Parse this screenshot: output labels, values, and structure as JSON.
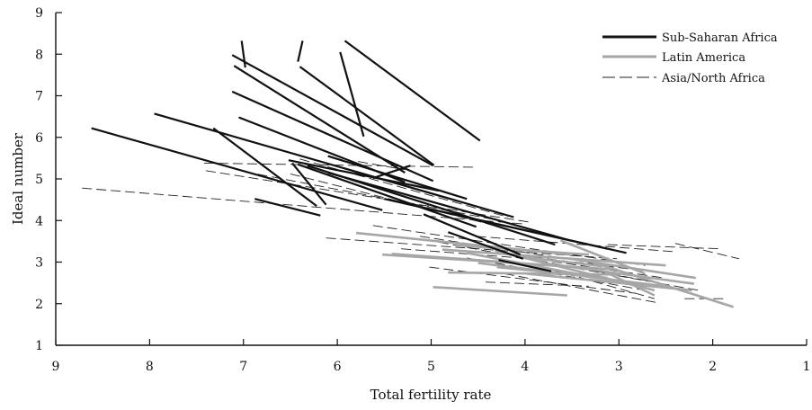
{
  "chart_data": {
    "type": "line",
    "title": "",
    "xlabel": "Total fertility rate",
    "ylabel": "Ideal number",
    "x_reversed": true,
    "xlim": [
      9,
      1
    ],
    "ylim": [
      1,
      9
    ],
    "x_ticks": [
      9,
      8,
      7,
      6,
      5,
      4,
      3,
      2,
      1
    ],
    "y_ticks": [
      1,
      2,
      3,
      4,
      5,
      6,
      7,
      8,
      9
    ],
    "grid": false,
    "legend_position": "top-right",
    "legend": [
      {
        "label": "Sub-Saharan Africa",
        "style": "solid-black"
      },
      {
        "label": "Latin America",
        "style": "solid-gray"
      },
      {
        "label": "Asia/North Africa",
        "style": "dashed-black"
      }
    ],
    "colors": {
      "sub_saharan": "#111111",
      "latin_america": "#a6a6a6",
      "asia": "#222222"
    },
    "series": [
      {
        "name": "Sub-Saharan Africa",
        "segments": [
          [
            [
              7.02,
              8.32
            ],
            [
              6.98,
              7.68
            ]
          ],
          [
            [
              6.37,
              8.32
            ],
            [
              6.42,
              7.82
            ]
          ],
          [
            [
              5.92,
              8.32
            ],
            [
              4.48,
              5.92
            ]
          ],
          [
            [
              7.12,
              7.98
            ],
            [
              4.98,
              5.32
            ]
          ],
          [
            [
              7.1,
              7.72
            ],
            [
              5.28,
              5.15
            ]
          ],
          [
            [
              6.4,
              7.7
            ],
            [
              4.97,
              5.33
            ]
          ],
          [
            [
              5.97,
              8.05
            ],
            [
              5.72,
              6.02
            ]
          ],
          [
            [
              7.12,
              7.1
            ],
            [
              4.98,
              4.95
            ]
          ],
          [
            [
              8.62,
              6.22
            ],
            [
              5.52,
              4.25
            ]
          ],
          [
            [
              7.05,
              6.48
            ],
            [
              5.28,
              4.92
            ]
          ],
          [
            [
              7.95,
              6.57
            ],
            [
              4.12,
              4.08
            ]
          ],
          [
            [
              7.32,
              6.22
            ],
            [
              6.22,
              4.35
            ]
          ],
          [
            [
              6.52,
              5.45
            ],
            [
              4.92,
              4.72
            ]
          ],
          [
            [
              6.88,
              4.52
            ],
            [
              6.18,
              4.12
            ]
          ],
          [
            [
              6.1,
              5.55
            ],
            [
              4.62,
              4.52
            ]
          ],
          [
            [
              6.48,
              5.38
            ],
            [
              6.12,
              4.38
            ]
          ],
          [
            [
              6.42,
              5.35
            ],
            [
              4.52,
              3.85
            ]
          ],
          [
            [
              5.62,
              5.02
            ],
            [
              5.22,
              5.32
            ]
          ],
          [
            [
              6.32,
              5.32
            ],
            [
              3.68,
              3.42
            ]
          ],
          [
            [
              6.1,
              5.15
            ],
            [
              3.52,
              3.52
            ]
          ],
          [
            [
              5.5,
              4.52
            ],
            [
              3.12,
              3.32
            ]
          ],
          [
            [
              5.3,
              4.42
            ],
            [
              2.92,
              3.22
            ]
          ],
          [
            [
              5.08,
              4.15
            ],
            [
              4.05,
              3.18
            ]
          ],
          [
            [
              4.82,
              3.72
            ],
            [
              4.02,
              3.08
            ]
          ],
          [
            [
              4.28,
              3.05
            ],
            [
              3.72,
              2.78
            ]
          ]
        ]
      },
      {
        "name": "Latin America",
        "segments": [
          [
            [
              4.98,
              2.4
            ],
            [
              3.55,
              2.2
            ]
          ],
          [
            [
              5.8,
              3.7
            ],
            [
              3.52,
              3.18
            ]
          ],
          [
            [
              5.52,
              3.18
            ],
            [
              3.02,
              2.82
            ]
          ],
          [
            [
              4.82,
              2.75
            ],
            [
              2.98,
              2.7
            ]
          ],
          [
            [
              3.98,
              2.72
            ],
            [
              2.22,
              2.32
            ]
          ],
          [
            [
              4.88,
              3.3
            ],
            [
              2.5,
              2.92
            ]
          ],
          [
            [
              3.82,
              2.98
            ],
            [
              2.2,
              2.48
            ]
          ],
          [
            [
              3.32,
              2.58
            ],
            [
              2.35,
              2.35
            ]
          ],
          [
            [
              4.3,
              2.88
            ],
            [
              3.12,
              2.62
            ]
          ],
          [
            [
              3.4,
              3.08
            ],
            [
              1.78,
              1.92
            ]
          ],
          [
            [
              3.62,
              3.52
            ],
            [
              2.72,
              2.72
            ]
          ],
          [
            [
              3.52,
              3.08
            ],
            [
              2.18,
              2.62
            ]
          ],
          [
            [
              4.62,
              3.22
            ],
            [
              3.22,
              2.62
            ]
          ],
          [
            [
              4.5,
              2.98
            ],
            [
              2.52,
              2.42
            ]
          ],
          [
            [
              4.02,
              3.12
            ],
            [
              3.18,
              2.9
            ]
          ],
          [
            [
              4.32,
              3.28
            ],
            [
              2.62,
              2.32
            ]
          ],
          [
            [
              3.18,
              2.8
            ],
            [
              2.62,
              2.2
            ]
          ],
          [
            [
              5.42,
              3.2
            ],
            [
              3.62,
              2.9
            ]
          ],
          [
            [
              4.72,
              3.4
            ],
            [
              3.32,
              3.18
            ]
          ]
        ]
      },
      {
        "name": "Asia/North Africa",
        "segments": [
          [
            [
              8.72,
              4.78
            ],
            [
              4.02,
              3.92
            ]
          ],
          [
            [
              7.42,
              5.38
            ],
            [
              4.52,
              5.28
            ]
          ],
          [
            [
              7.4,
              5.2
            ],
            [
              3.92,
              3.95
            ]
          ],
          [
            [
              7.0,
              5.18
            ],
            [
              4.32,
              4.02
            ]
          ],
          [
            [
              6.4,
              5.48
            ],
            [
              4.18,
              4.08
            ]
          ],
          [
            [
              6.5,
              5.12
            ],
            [
              4.22,
              3.82
            ]
          ],
          [
            [
              5.78,
              5.42
            ],
            [
              5.28,
              5.22
            ]
          ],
          [
            [
              6.12,
              3.58
            ],
            [
              3.02,
              3.08
            ]
          ],
          [
            [
              5.62,
              3.88
            ],
            [
              2.72,
              2.92
            ]
          ],
          [
            [
              5.12,
              3.62
            ],
            [
              2.52,
              2.72
            ]
          ],
          [
            [
              4.52,
              3.62
            ],
            [
              2.42,
              3.25
            ]
          ],
          [
            [
              4.92,
              3.48
            ],
            [
              2.62,
              2.52
            ]
          ],
          [
            [
              4.32,
              3.22
            ],
            [
              2.52,
              2.62
            ]
          ],
          [
            [
              4.62,
              3.1
            ],
            [
              2.72,
              2.32
            ]
          ],
          [
            [
              3.92,
              3.12
            ],
            [
              2.22,
              2.65
            ]
          ],
          [
            [
              3.62,
              2.92
            ],
            [
              2.15,
              2.32
            ]
          ],
          [
            [
              3.12,
              3.42
            ],
            [
              1.92,
              3.32
            ]
          ],
          [
            [
              2.4,
              3.45
            ],
            [
              1.72,
              3.08
            ]
          ],
          [
            [
              2.3,
              2.12
            ],
            [
              1.88,
              2.12
            ]
          ],
          [
            [
              3.82,
              2.98
            ],
            [
              2.32,
              2.52
            ]
          ],
          [
            [
              4.22,
              2.72
            ],
            [
              2.58,
              2.02
            ]
          ],
          [
            [
              5.32,
              3.32
            ],
            [
              3.02,
              2.92
            ]
          ],
          [
            [
              5.02,
              2.88
            ],
            [
              2.82,
              2.25
            ]
          ],
          [
            [
              4.42,
              2.52
            ],
            [
              3.32,
              2.42
            ]
          ],
          [
            [
              3.72,
              2.82
            ],
            [
              2.62,
              2.12
            ]
          ]
        ]
      }
    ]
  }
}
